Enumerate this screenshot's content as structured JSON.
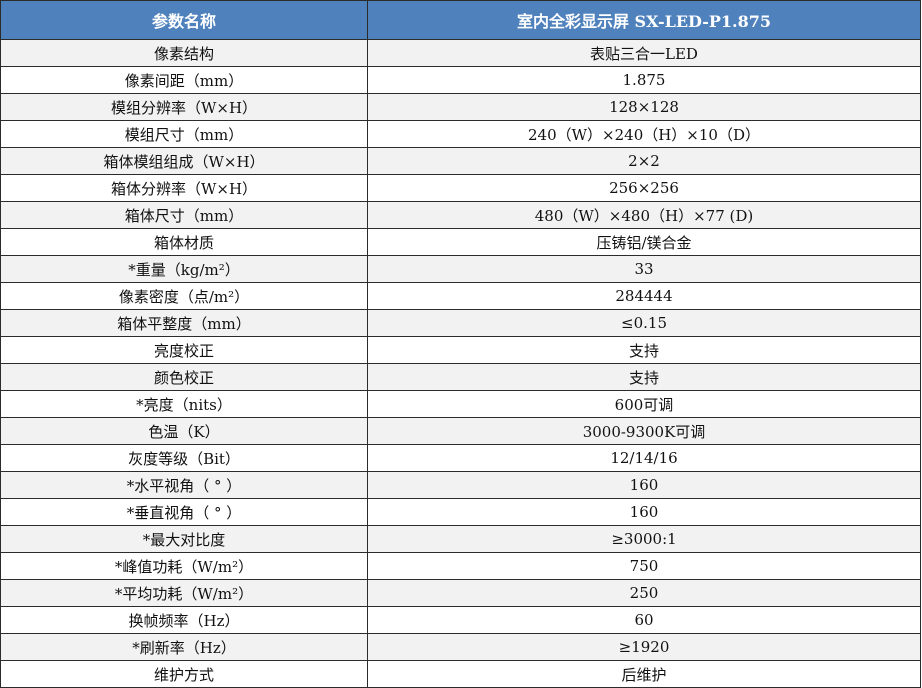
{
  "header": {
    "param_label": "参数名称",
    "model_label": "室内全彩显示屏 SX-LED-P1.875"
  },
  "colors": {
    "header_bg": "#4f81bd",
    "odd_row_bg": "#f2f2f2"
  },
  "rows": [
    {
      "name": "像素结构",
      "value": "表贴三合一LED"
    },
    {
      "name": "像素间距（mm）",
      "value": "1.875"
    },
    {
      "name": "模组分辨率（W×H）",
      "value": "128×128"
    },
    {
      "name": "模组尺寸（mm）",
      "value": "240（W）×240（H）×10（D）"
    },
    {
      "name": "箱体模组组成（W×H）",
      "value": "2×2"
    },
    {
      "name": "箱体分辨率（W×H）",
      "value": "256×256"
    },
    {
      "name": "箱体尺寸（mm）",
      "value": "480（W）×480（H）×77 (D)"
    },
    {
      "name": "箱体材质",
      "value": "压铸铝/镁合金"
    },
    {
      "name": "*重量（kg/m²）",
      "value": "33"
    },
    {
      "name": "像素密度（点/m²）",
      "value": "284444"
    },
    {
      "name": "箱体平整度（mm）",
      "value": "≤0.15"
    },
    {
      "name": "亮度校正",
      "value": "支持"
    },
    {
      "name": "颜色校正",
      "value": "支持"
    },
    {
      "name": "*亮度（nits）",
      "value": "600可调"
    },
    {
      "name": "色温（K）",
      "value": "3000-9300K可调"
    },
    {
      "name": "灰度等级（Bit）",
      "value": "12/14/16"
    },
    {
      "name": "*水平视角（ ° ）",
      "value": "160"
    },
    {
      "name": "*垂直视角（ ° ）",
      "value": "160"
    },
    {
      "name": "*最大对比度",
      "value": "≥3000:1"
    },
    {
      "name": "*峰值功耗（W/m²）",
      "value": "750"
    },
    {
      "name": "*平均功耗（W/m²）",
      "value": "250"
    },
    {
      "name": "换帧频率（Hz）",
      "value": "60"
    },
    {
      "name": "*刷新率（Hz）",
      "value": "≥1920"
    },
    {
      "name": "维护方式",
      "value": "后维护"
    }
  ]
}
